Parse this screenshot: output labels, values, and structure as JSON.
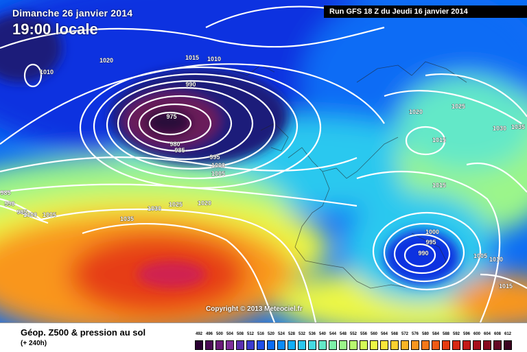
{
  "header": {
    "valid_date": "Dimanche 26 janvier 2014",
    "valid_time": "19:00 locale",
    "run_info": "Run GFS 18 Z du Jeudi 16 janvier 2014"
  },
  "copyright": "Copyright © 2013 Meteociel.fr",
  "footer": {
    "parameter": "Géop. Z500 & pression au sol",
    "forecast_range": "(+ 240h)"
  },
  "scale": {
    "values": [
      "492",
      "496",
      "500",
      "504",
      "508",
      "512",
      "516",
      "520",
      "524",
      "528",
      "532",
      "536",
      "540",
      "544",
      "548",
      "552",
      "556",
      "560",
      "564",
      "568",
      "572",
      "576",
      "580",
      "584",
      "588",
      "592",
      "596",
      "600",
      "604",
      "608",
      "612"
    ],
    "colors": [
      "#2a0032",
      "#4b0a55",
      "#6a1a78",
      "#7f2f9a",
      "#5a2fb0",
      "#3b3bcf",
      "#1e4fe8",
      "#0a6cf5",
      "#0a8cf7",
      "#12aef5",
      "#2bc8ef",
      "#46dbe2",
      "#63e8c8",
      "#7ef0a8",
      "#9bf58a",
      "#b8f86e",
      "#d4fa56",
      "#ecf745",
      "#f9e63a",
      "#fbd030",
      "#fbb426",
      "#f9961e",
      "#f57818",
      "#ef5a14",
      "#e63c12",
      "#d82a14",
      "#c41a18",
      "#a8101c",
      "#880a20",
      "#640824",
      "#3c0420"
    ]
  },
  "isobar_labels": [
    {
      "text": "1020"
    },
    {
      "text": "1015"
    },
    {
      "text": "1010"
    },
    {
      "text": "1010"
    },
    {
      "text": "990"
    },
    {
      "text": "975"
    },
    {
      "text": "980"
    },
    {
      "text": "985"
    },
    {
      "text": "995"
    },
    {
      "text": "1000"
    },
    {
      "text": "1005"
    },
    {
      "text": "1030"
    },
    {
      "text": "1025"
    },
    {
      "text": "1020"
    },
    {
      "text": "1035"
    },
    {
      "text": "1020"
    },
    {
      "text": "1025"
    },
    {
      "text": "1030"
    },
    {
      "text": "1035"
    },
    {
      "text": "1015"
    },
    {
      "text": "1015"
    },
    {
      "text": "1000"
    },
    {
      "text": "995"
    },
    {
      "text": "990"
    },
    {
      "text": "1005"
    },
    {
      "text": "1010"
    },
    {
      "text": "1015"
    },
    {
      "text": "985"
    },
    {
      "text": "990"
    },
    {
      "text": "995"
    },
    {
      "text": "1000"
    },
    {
      "text": "1005"
    }
  ],
  "map_colors": {
    "deep_low": "#2a0a3a",
    "low_core": "#6b1a5a",
    "navy": "#1a1f7a",
    "blue": "#1030e0",
    "mid_blue": "#0a6cf5",
    "cyan": "#2bc8ef",
    "aqua": "#63e8c8",
    "green": "#9bf58a",
    "yellow": "#ecf745",
    "orange": "#f9961e",
    "red": "#e63c12",
    "crimson": "#d02050"
  }
}
